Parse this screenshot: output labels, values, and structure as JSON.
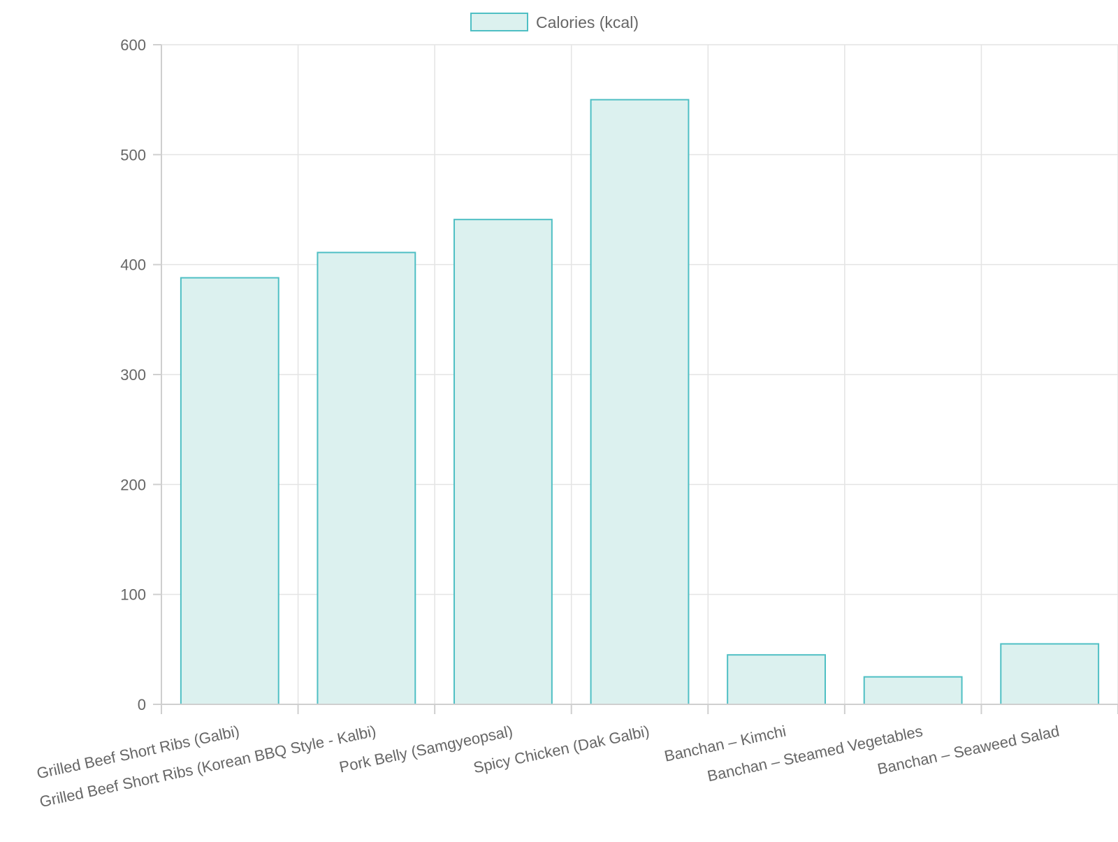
{
  "chart_data": {
    "type": "bar",
    "categories": [
      "Grilled Beef Short Ribs (Galbi)",
      "Grilled Beef Short Ribs (Korean BBQ Style - Kalbi)",
      "Pork Belly (Samgyeopsal)",
      "Spicy Chicken (Dak Galbi)",
      "Banchan – Kimchi",
      "Banchan – Steamed Vegetables",
      "Banchan – Seaweed Salad"
    ],
    "series": [
      {
        "name": "Calories (kcal)",
        "values": [
          388,
          411,
          441,
          550,
          45,
          25,
          55
        ]
      }
    ],
    "ylim": [
      0,
      600
    ],
    "yticks": [
      0,
      100,
      200,
      300,
      400,
      500,
      600
    ],
    "grid": true,
    "legend_position": "top",
    "colors": {
      "bar_fill": "#dcf1ef",
      "bar_stroke": "#4fbfc4"
    }
  }
}
